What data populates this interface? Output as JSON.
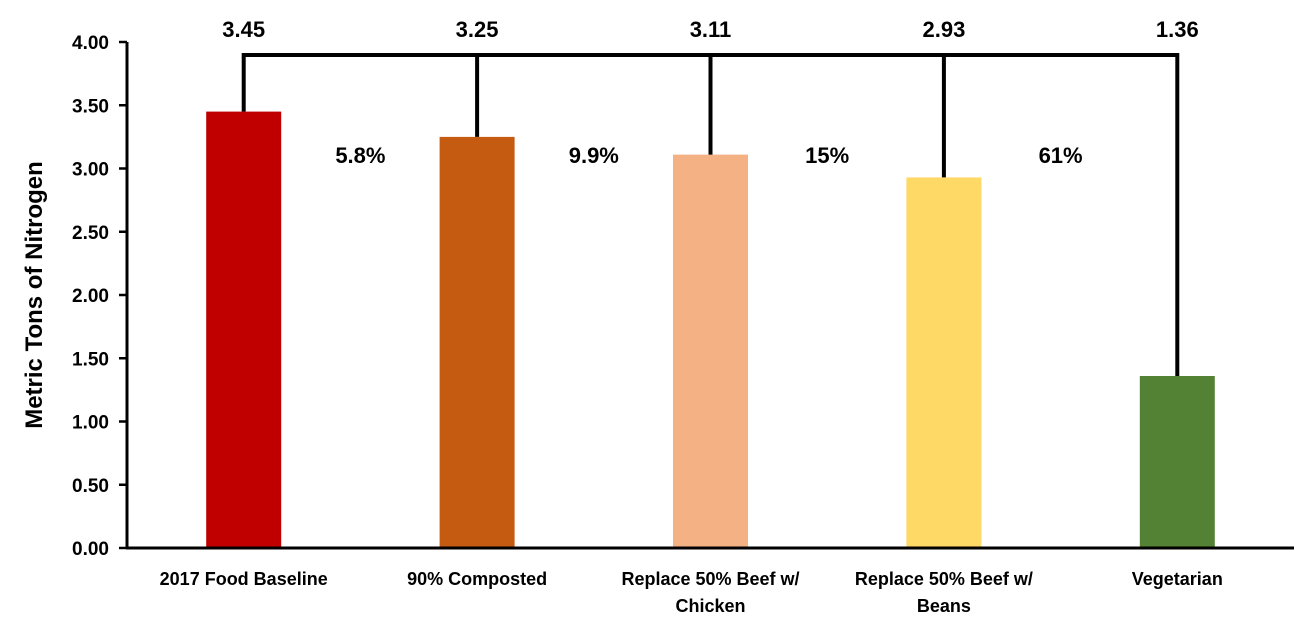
{
  "chart_data": {
    "type": "bar",
    "title": "",
    "xlabel": "",
    "ylabel": "Metric Tons of Nitrogen",
    "ylim": [
      0,
      4
    ],
    "yticks": [
      "0.00",
      "0.50",
      "1.00",
      "1.50",
      "2.00",
      "2.50",
      "3.00",
      "3.50",
      "4.00"
    ],
    "categories": [
      [
        "2017 Food Baseline"
      ],
      [
        "90% Composted"
      ],
      [
        "Replace 50% Beef w/",
        "Chicken"
      ],
      [
        "Replace 50% Beef w/",
        "Beans"
      ],
      [
        "Vegetarian"
      ]
    ],
    "values": [
      3.45,
      3.25,
      3.11,
      2.93,
      1.36
    ],
    "value_labels": [
      "3.45",
      "3.25",
      "3.11",
      "2.93",
      "1.36"
    ],
    "colors": [
      "#C00000",
      "#C55A11",
      "#F4B183",
      "#FFD966",
      "#548235"
    ],
    "reduction_labels": [
      "5.8%",
      "9.9%",
      "15%",
      "61%"
    ],
    "grid": false,
    "legend": "none"
  }
}
